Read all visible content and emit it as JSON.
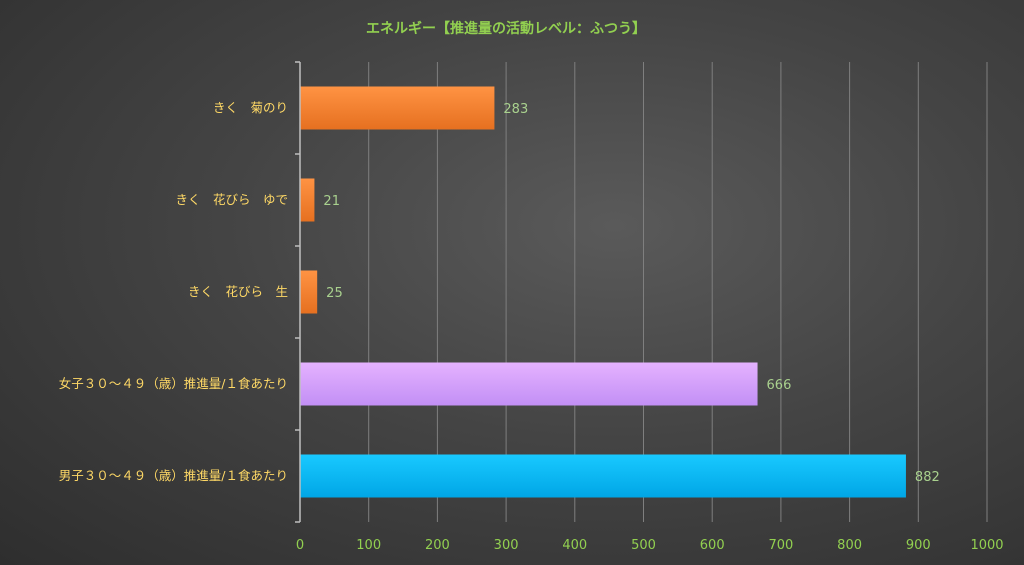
{
  "chart_data": {
    "type": "bar",
    "orientation": "horizontal",
    "title": "エネルギー【推進量の活動レベル：ふつう】",
    "categories": [
      "きく　菊のり",
      "きく　花びら　ゆで",
      "きく　花びら　生",
      "女子３０～４９（歳）推進量/１食あたり",
      "男子３０～４９（歳）推進量/１食あたり"
    ],
    "values": [
      283,
      21,
      25,
      666,
      882
    ],
    "data_labels": [
      "283",
      "21",
      "25",
      "666",
      "882"
    ],
    "bar_colors": [
      "#f07a2a",
      "#f07a2a",
      "#f07a2a",
      "#cc99ff",
      "#00b0f0"
    ],
    "xlim": [
      0,
      1000
    ],
    "xticks": [
      0,
      100,
      200,
      300,
      400,
      500,
      600,
      700,
      800,
      900,
      1000
    ],
    "xtick_labels": [
      "0",
      "100",
      "200",
      "300",
      "400",
      "500",
      "600",
      "700",
      "800",
      "900",
      "1000"
    ],
    "xlabel": "",
    "ylabel": "",
    "grid": true,
    "legend": "none"
  },
  "colors": {
    "title": "#92d050",
    "category_label": "#ffd966",
    "tick_label": "#92d050",
    "data_label": "#a9d18e",
    "gridline": "#7f7f7f",
    "axis_line": "#bfbfbf"
  }
}
